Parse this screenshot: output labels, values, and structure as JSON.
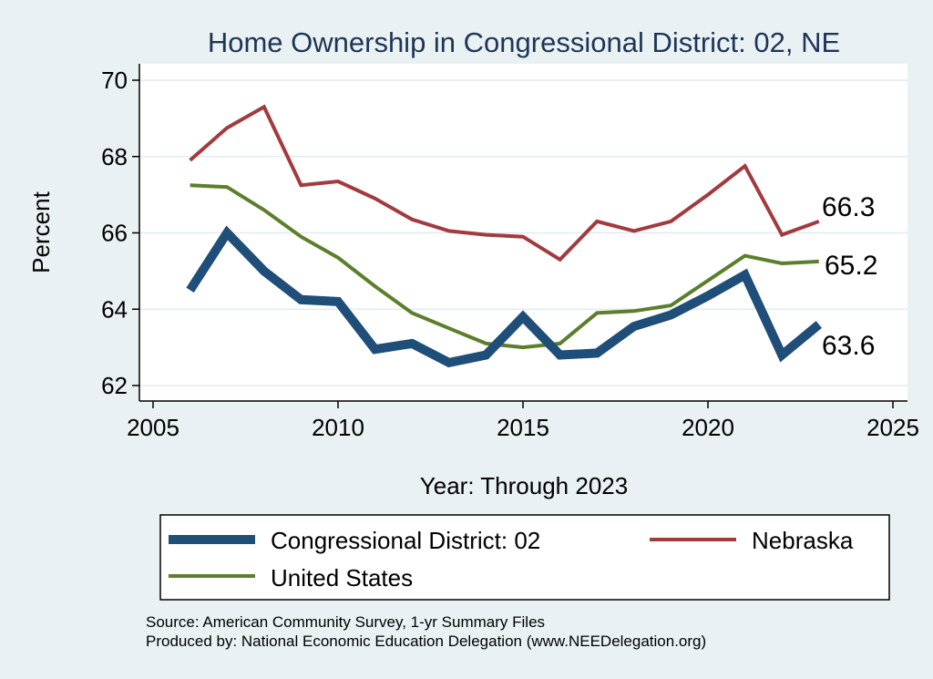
{
  "chart_data": {
    "type": "line",
    "title": "Home Ownership in Congressional District:  02, NE",
    "xlabel": "Year: Through 2023",
    "ylabel": "Percent",
    "xlim": [
      2005,
      2025
    ],
    "ylim": [
      62,
      70
    ],
    "x_ticks": [
      2005,
      2010,
      2015,
      2020,
      2025
    ],
    "y_ticks": [
      62,
      64,
      66,
      68,
      70
    ],
    "x": [
      2006,
      2007,
      2008,
      2009,
      2010,
      2011,
      2012,
      2013,
      2014,
      2015,
      2016,
      2017,
      2018,
      2019,
      2020,
      2021,
      2022,
      2023
    ],
    "series": [
      {
        "name": "Congressional District:  02",
        "color": "#1f4e79",
        "values": [
          64.5,
          66.0,
          65.0,
          64.25,
          64.2,
          62.95,
          63.1,
          62.6,
          62.8,
          63.8,
          62.8,
          62.85,
          63.55,
          63.85,
          64.35,
          64.9,
          62.8,
          63.6
        ],
        "end_label": "63.6"
      },
      {
        "name": "Nebraska",
        "color": "#a23a3e",
        "values": [
          67.9,
          68.75,
          69.3,
          67.25,
          67.35,
          66.9,
          66.35,
          66.05,
          65.95,
          65.9,
          65.3,
          66.3,
          66.05,
          66.3,
          67.0,
          67.75,
          65.95,
          66.3
        ],
        "end_label": "66.3"
      },
      {
        "name": "United States",
        "color": "#5b7f2b",
        "values": [
          67.25,
          67.2,
          66.6,
          65.9,
          65.35,
          64.6,
          63.9,
          63.5,
          63.1,
          63.0,
          63.1,
          63.9,
          63.95,
          64.1,
          64.75,
          65.4,
          65.2,
          65.25
        ],
        "end_label": "65.2"
      }
    ],
    "legend_position": "bottom",
    "grid": true
  },
  "footer": {
    "source": "Source: American Community Survey, 1-yr Summary Files",
    "produced_by": "Produced by: National Economic Education Delegation (www.NEEDelegation.org)"
  }
}
